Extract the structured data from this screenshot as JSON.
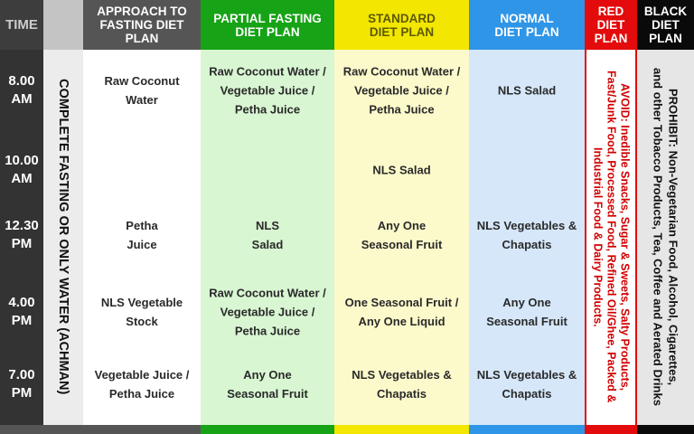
{
  "header": {
    "time": "TIME",
    "columns": [
      [
        "APPROACH TO",
        "FASTING DIET",
        "PLAN"
      ],
      [
        "PARTIAL FASTING",
        "DIET PLAN"
      ],
      [
        "STANDARD",
        "DIET PLAN"
      ],
      [
        "NORMAL",
        "DIET PLAN"
      ],
      [
        "RED",
        "DIET",
        "PLAN"
      ],
      [
        "BLACK",
        "DIET",
        "PLAN"
      ]
    ]
  },
  "complete_fasting": "COMPLETE FASTING OR ONLY WATER (ACHMAN)",
  "rows": [
    {
      "time": [
        "8.00",
        "AM"
      ],
      "cells": [
        [
          "Raw Coconut",
          "Water"
        ],
        [
          "Raw Coconut Water /",
          "Vegetable Juice /",
          "Petha Juice"
        ],
        [
          "Raw Coconut Water /",
          "Vegetable Juice /",
          "Petha Juice"
        ],
        [
          "NLS Salad"
        ]
      ]
    },
    {
      "time": [
        "10.00",
        "AM"
      ],
      "cells": [
        null,
        null,
        [
          "NLS Salad"
        ],
        null
      ]
    },
    {
      "time": [
        "12.30",
        "PM"
      ],
      "cells": [
        [
          "Petha",
          "Juice"
        ],
        [
          "NLS",
          "Salad"
        ],
        [
          "Any One",
          "Seasonal Fruit"
        ],
        [
          "NLS Vegetables &",
          "Chapatis"
        ]
      ]
    },
    {
      "time": [
        "4.00",
        "PM"
      ],
      "cells": [
        [
          "NLS Vegetable",
          "Stock"
        ],
        [
          "Raw Coconut Water /",
          "Vegetable Juice /",
          "Petha Juice"
        ],
        [
          "One Seasonal Fruit /",
          "Any One Liquid"
        ],
        [
          "Any One",
          "Seasonal Fruit"
        ]
      ]
    },
    {
      "time": [
        "7.00",
        "PM"
      ],
      "cells": [
        [
          "Vegetable Juice /",
          "Petha Juice"
        ],
        [
          "Any One",
          "Seasonal Fruit"
        ],
        [
          "NLS Vegetables &",
          "Chapatis"
        ],
        [
          "NLS Vegetables &",
          "Chapatis"
        ]
      ]
    }
  ],
  "red_diet": [
    "AVOID: Inedible Snacks, Sugar & Sweets, Salty Products,",
    "Fast/Junk Food, Processed Food, Refined Oil/Ghee, Packed &",
    "Industrial Food & Dairy Products."
  ],
  "black_diet": [
    "PROHIBIT: Non-Vegetarian Food, Alcohol, Cigarettes,",
    "and other Tobacco Products, Tea, Coffee and Aerated Drinks"
  ]
}
